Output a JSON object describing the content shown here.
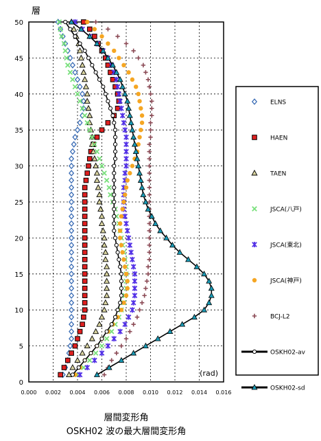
{
  "chart_data": {
    "type": "line",
    "title": "OSKH02 波の最大層間変形角",
    "xlabel": "層間変形角",
    "ylabel": "層",
    "x_unit": "(rad)",
    "xlim": [
      0,
      0.016
    ],
    "ylim": [
      0,
      50
    ],
    "x_ticks": [
      "0.000",
      "0.002",
      "0.004",
      "0.006",
      "0.008",
      "0.010",
      "0.012",
      "0.014",
      "0.016"
    ],
    "y_ticks": [
      "0",
      "5",
      "10",
      "15",
      "20",
      "25",
      "30",
      "35",
      "40",
      "45",
      "50"
    ],
    "grid": true,
    "legend_position": "right",
    "floors": [
      1,
      2,
      3,
      4,
      5,
      6,
      7,
      8,
      9,
      10,
      11,
      12,
      13,
      14,
      15,
      16,
      17,
      18,
      19,
      20,
      21,
      22,
      23,
      24,
      25,
      26,
      27,
      28,
      29,
      30,
      31,
      32,
      33,
      34,
      35,
      36,
      37,
      38,
      39,
      40,
      41,
      42,
      43,
      44,
      45,
      46,
      47,
      48,
      49,
      50
    ],
    "series": [
      {
        "name": "ELNS",
        "marker": "diamond",
        "color": "#3a6cb5",
        "values": [
          0.0028,
          0.003,
          0.0032,
          0.0033,
          0.0034,
          0.0035,
          0.0035,
          0.0035,
          0.0035,
          0.0035,
          0.0035,
          0.0035,
          0.0035,
          0.0035,
          0.0035,
          0.0035,
          0.0035,
          0.0035,
          0.0035,
          0.0035,
          0.0035,
          0.0035,
          0.0035,
          0.0035,
          0.0035,
          0.0035,
          0.0035,
          0.0035,
          0.0035,
          0.0035,
          0.0035,
          0.0036,
          0.0037,
          0.0038,
          0.004,
          0.0042,
          0.0044,
          0.0045,
          0.0045,
          0.0044,
          0.0042,
          0.004,
          0.0038,
          0.0036,
          0.0034,
          0.0032,
          0.003,
          0.0028,
          0.0026,
          0.0024
        ]
      },
      {
        "name": "HAEN",
        "marker": "square",
        "color": "#e02020",
        "values": [
          0.0026,
          0.0029,
          0.0032,
          0.0035,
          0.0038,
          0.004,
          0.0042,
          0.0044,
          0.0045,
          0.0046,
          0.0046,
          0.0046,
          0.0046,
          0.0046,
          0.0046,
          0.0046,
          0.0046,
          0.0046,
          0.0046,
          0.0046,
          0.0046,
          0.0046,
          0.0046,
          0.0046,
          0.0046,
          0.0046,
          0.0046,
          0.0047,
          0.0048,
          0.0049,
          0.005,
          0.0051,
          0.0053,
          0.0056,
          0.006,
          0.0065,
          0.007,
          0.0073,
          0.0074,
          0.0073,
          0.0071,
          0.0069,
          0.0067,
          0.0065,
          0.0063,
          0.006,
          0.0057,
          0.0054,
          0.005,
          0.0045
        ]
      },
      {
        "name": "TAEN",
        "marker": "triangle",
        "color": "#d9d4a0",
        "values": [
          0.0033,
          0.0036,
          0.004,
          0.0044,
          0.0048,
          0.0052,
          0.0055,
          0.0058,
          0.006,
          0.0062,
          0.0063,
          0.0064,
          0.0064,
          0.0064,
          0.0064,
          0.0064,
          0.0063,
          0.0063,
          0.0062,
          0.0062,
          0.0061,
          0.006,
          0.006,
          0.0059,
          0.0058,
          0.0058,
          0.0057,
          0.0056,
          0.0056,
          0.0055,
          0.0054,
          0.0053,
          0.0052,
          0.0052,
          0.0051,
          0.005,
          0.005,
          0.0049,
          0.0048,
          0.0048,
          0.0047,
          0.0046,
          0.0045,
          0.0044,
          0.0043,
          0.0042,
          0.0041,
          0.0039,
          0.0037,
          0.0035
        ]
      },
      {
        "name": "JSCA(八戸)",
        "marker": "x",
        "color": "#79e07c",
        "values": [
          0.004,
          0.0045,
          0.005,
          0.0055,
          0.006,
          0.0064,
          0.0068,
          0.0071,
          0.0074,
          0.0076,
          0.0078,
          0.0079,
          0.008,
          0.008,
          0.008,
          0.008,
          0.0079,
          0.0078,
          0.0077,
          0.0076,
          0.0075,
          0.0074,
          0.0072,
          0.0071,
          0.0069,
          0.0067,
          0.0066,
          0.0064,
          0.0062,
          0.006,
          0.0058,
          0.0056,
          0.0054,
          0.0052,
          0.005,
          0.0048,
          0.0046,
          0.0044,
          0.0042,
          0.004,
          0.0038,
          0.0036,
          0.0034,
          0.0032,
          0.0031,
          0.003,
          0.0029,
          0.0027,
          0.0026,
          0.0025
        ]
      },
      {
        "name": "JSCA(東北)",
        "marker": "star",
        "color": "#5230e6",
        "values": [
          0.0042,
          0.0048,
          0.0054,
          0.006,
          0.0065,
          0.007,
          0.0075,
          0.0079,
          0.0082,
          0.0085,
          0.0086,
          0.0087,
          0.0087,
          0.0087,
          0.0087,
          0.0086,
          0.0085,
          0.0084,
          0.0083,
          0.0082,
          0.0081,
          0.008,
          0.0079,
          0.0078,
          0.0078,
          0.0078,
          0.0078,
          0.0079,
          0.0079,
          0.008,
          0.008,
          0.008,
          0.008,
          0.008,
          0.0079,
          0.0078,
          0.0077,
          0.0076,
          0.0075,
          0.0074,
          0.0073,
          0.0072,
          0.007,
          0.0068,
          0.0065,
          0.0061,
          0.0056,
          0.005,
          0.0044,
          0.0038
        ]
      },
      {
        "name": "JSCA(神戸)",
        "marker": "circle",
        "color": "#f5a623",
        "values": [
          0.0038,
          0.0042,
          0.0046,
          0.0051,
          0.0056,
          0.006,
          0.0065,
          0.0069,
          0.0073,
          0.0076,
          0.0078,
          0.008,
          0.0081,
          0.0081,
          0.008,
          0.0079,
          0.0078,
          0.0077,
          0.0076,
          0.0075,
          0.0075,
          0.0075,
          0.0076,
          0.0077,
          0.0078,
          0.0079,
          0.008,
          0.0081,
          0.0083,
          0.0085,
          0.0087,
          0.0089,
          0.009,
          0.0091,
          0.0092,
          0.0093,
          0.0093,
          0.0092,
          0.0091,
          0.009,
          0.0088,
          0.0085,
          0.0082,
          0.0078,
          0.0074,
          0.007,
          0.0065,
          0.006,
          0.0054,
          0.0048
        ]
      },
      {
        "name": "BCJ-L2",
        "marker": "plus",
        "color": "#8b4a55",
        "values": [
          0.0062,
          0.0065,
          0.0068,
          0.0072,
          0.0076,
          0.008,
          0.0083,
          0.0086,
          0.0089,
          0.0091,
          0.0093,
          0.0095,
          0.0096,
          0.0097,
          0.0098,
          0.0098,
          0.0099,
          0.0099,
          0.0099,
          0.0099,
          0.0099,
          0.0099,
          0.0099,
          0.0099,
          0.0099,
          0.0099,
          0.0099,
          0.0099,
          0.0099,
          0.0099,
          0.0099,
          0.0099,
          0.0099,
          0.01,
          0.01,
          0.01,
          0.0101,
          0.0101,
          0.0101,
          0.01,
          0.0099,
          0.0098,
          0.0096,
          0.0094,
          0.009,
          0.0086,
          0.008,
          0.0073,
          0.0065,
          0.0055
        ]
      },
      {
        "name": "OSKH02-av",
        "marker": "circle-open",
        "color": "#000000",
        "line": true,
        "values": [
          0.0036,
          0.0041,
          0.0046,
          0.0051,
          0.0056,
          0.006,
          0.0064,
          0.0068,
          0.0071,
          0.0073,
          0.0075,
          0.0076,
          0.0076,
          0.0076,
          0.0076,
          0.0075,
          0.0074,
          0.0073,
          0.0072,
          0.0071,
          0.007,
          0.007,
          0.007,
          0.007,
          0.007,
          0.007,
          0.007,
          0.007,
          0.007,
          0.007,
          0.0071,
          0.0071,
          0.0071,
          0.0071,
          0.0071,
          0.007,
          0.0069,
          0.0067,
          0.0065,
          0.0063,
          0.0061,
          0.0058,
          0.0055,
          0.0052,
          0.0049,
          0.0046,
          0.0042,
          0.0038,
          0.0034,
          0.003
        ]
      },
      {
        "name": "OSKH02-sd",
        "marker": "triangle-teal",
        "color": "#1a9ab5",
        "line": true,
        "values": [
          0.0056,
          0.0066,
          0.0076,
          0.0086,
          0.0096,
          0.0106,
          0.0116,
          0.0126,
          0.0136,
          0.0144,
          0.0148,
          0.015,
          0.015,
          0.0148,
          0.0144,
          0.0138,
          0.0131,
          0.0124,
          0.0118,
          0.0113,
          0.0108,
          0.0104,
          0.0101,
          0.0098,
          0.0096,
          0.0094,
          0.0093,
          0.0092,
          0.0091,
          0.009,
          0.0089,
          0.0088,
          0.0087,
          0.0086,
          0.0085,
          0.0084,
          0.0083,
          0.0082,
          0.0081,
          0.0079,
          0.0077,
          0.0075,
          0.0072,
          0.0069,
          0.0065,
          0.0061,
          0.0056,
          0.005,
          0.0043,
          0.0035
        ]
      }
    ]
  }
}
